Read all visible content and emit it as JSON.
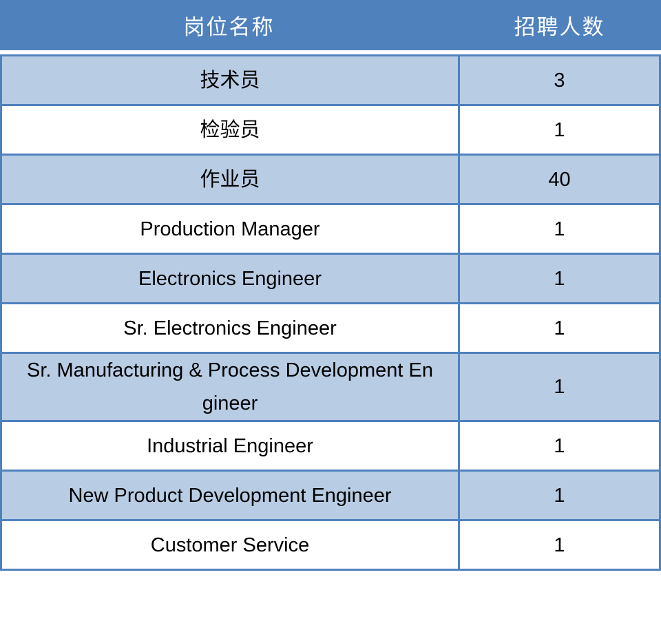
{
  "table": {
    "columns": [
      {
        "label": "岗位名称"
      },
      {
        "label": "招聘人数"
      }
    ],
    "rows": [
      {
        "position": "技术员",
        "count": "3"
      },
      {
        "position": "检验员",
        "count": "1"
      },
      {
        "position": "作业员",
        "count": "40"
      },
      {
        "position": "Production Manager",
        "count": "1"
      },
      {
        "position": "Electronics Engineer",
        "count": "1"
      },
      {
        "position": "Sr. Electronics Engineer",
        "count": "1"
      },
      {
        "position": "Sr. Manufacturing & Process Development Engineer",
        "count": "1"
      },
      {
        "position": "Industrial Engineer",
        "count": "1"
      },
      {
        "position": "New Product Development Engineer",
        "count": "1"
      },
      {
        "position": "Customer Service",
        "count": "1"
      }
    ]
  },
  "colors": {
    "header_bg": "#4f81bd",
    "header_text": "#ffffff",
    "row_band": "#b8cce4",
    "row_plain": "#ffffff",
    "border": "#4f81bd",
    "body_text": "#000000"
  }
}
